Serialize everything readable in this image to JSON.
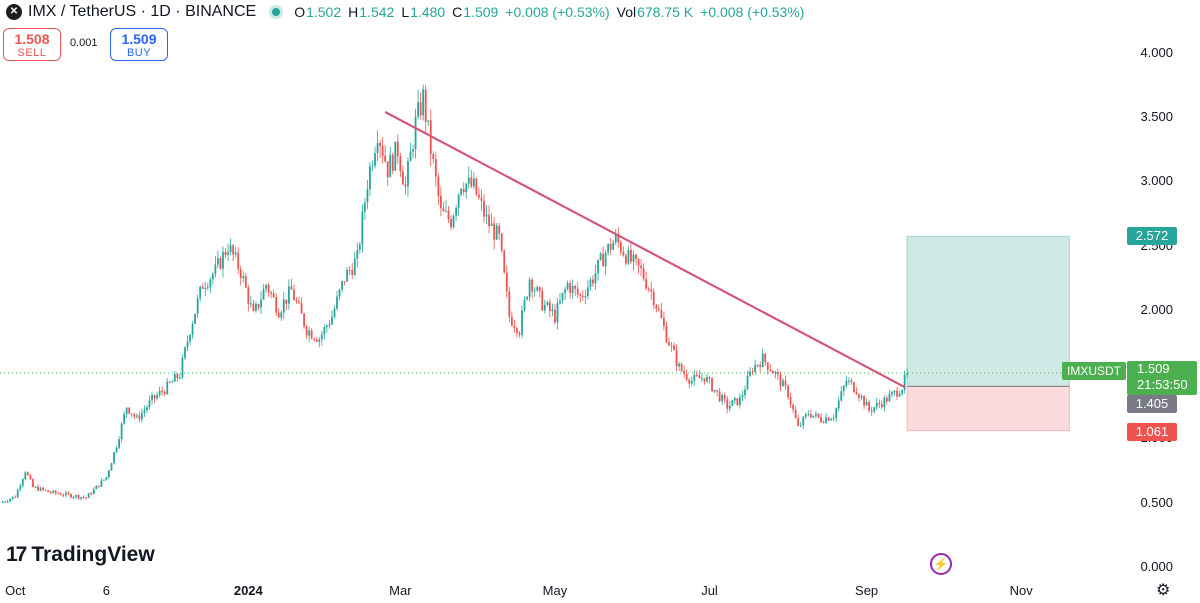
{
  "header": {
    "symbol_icon_glyph": "✕",
    "title": "IMX / TetherUS · 1D · BINANCE",
    "ohlc": [
      {
        "label": "O",
        "value": "1.502"
      },
      {
        "label": "H",
        "value": "1.542"
      },
      {
        "label": "L",
        "value": "1.480"
      },
      {
        "label": "C",
        "value": "1.509"
      }
    ],
    "change": "+0.008 (+0.53%)",
    "vol_label": "Vol",
    "volume": "678.75 K",
    "vol_change": "+0.008 (+0.53%)"
  },
  "trade": {
    "sell_price": "1.508",
    "sell_label": "SELL",
    "spread": "0.001",
    "buy_price": "1.509",
    "buy_label": "BUY"
  },
  "colors": {
    "up": "#26a69a",
    "down": "#ef5350",
    "trendline": "#d6537a",
    "target_zone": "#cfe9e5",
    "stop_zone": "#fadadd",
    "entry": "#787b86"
  },
  "chart_data": {
    "type": "candlestick",
    "title": "IMX / TetherUS · 1D · BINANCE",
    "xlabel": "",
    "ylabel": "",
    "ylim": [
      0.0,
      4.1
    ],
    "x_range": [
      "2023-09-25",
      "2024-12-10"
    ],
    "y_ticks": [
      "4.000",
      "3.500",
      "3.000",
      "2.500",
      "2.000",
      "1.500",
      "1.000",
      "0.500",
      "0.000"
    ],
    "x_ticks": [
      {
        "label": "Oct",
        "date": "2023-10-01",
        "bold": false
      },
      {
        "label": "6",
        "date": "2023-11-06",
        "bold": false
      },
      {
        "label": "2024",
        "date": "2024-01-01",
        "bold": true
      },
      {
        "label": "Mar",
        "date": "2024-03-01",
        "bold": false
      },
      {
        "label": "May",
        "date": "2024-05-01",
        "bold": false
      },
      {
        "label": "Jul",
        "date": "2024-07-01",
        "bold": false
      },
      {
        "label": "Sep",
        "date": "2024-09-01",
        "bold": false
      },
      {
        "label": "Nov",
        "date": "2024-11-01",
        "bold": false
      }
    ],
    "price_path": [
      [
        "2023-09-25",
        0.5
      ],
      [
        "2023-10-01",
        0.55
      ],
      [
        "2023-10-05",
        0.75
      ],
      [
        "2023-10-08",
        0.62
      ],
      [
        "2023-10-15",
        0.58
      ],
      [
        "2023-10-22",
        0.56
      ],
      [
        "2023-10-29",
        0.54
      ],
      [
        "2023-11-02",
        0.62
      ],
      [
        "2023-11-06",
        0.7
      ],
      [
        "2023-11-10",
        0.95
      ],
      [
        "2023-11-14",
        1.25
      ],
      [
        "2023-11-18",
        1.15
      ],
      [
        "2023-11-24",
        1.3
      ],
      [
        "2023-11-30",
        1.4
      ],
      [
        "2023-12-05",
        1.5
      ],
      [
        "2023-12-09",
        1.85
      ],
      [
        "2023-12-14",
        2.2
      ],
      [
        "2023-12-19",
        2.3
      ],
      [
        "2023-12-24",
        2.5
      ],
      [
        "2023-12-29",
        2.3
      ],
      [
        "2024-01-03",
        1.95
      ],
      [
        "2024-01-08",
        2.2
      ],
      [
        "2024-01-13",
        2.0
      ],
      [
        "2024-01-18",
        2.15
      ],
      [
        "2024-01-24",
        1.85
      ],
      [
        "2024-01-29",
        1.78
      ],
      [
        "2024-02-03",
        1.95
      ],
      [
        "2024-02-08",
        2.25
      ],
      [
        "2024-02-13",
        2.4
      ],
      [
        "2024-02-17",
        3.0
      ],
      [
        "2024-02-21",
        3.4
      ],
      [
        "2024-02-25",
        3.1
      ],
      [
        "2024-02-29",
        3.25
      ],
      [
        "2024-03-03",
        2.95
      ],
      [
        "2024-03-07",
        3.45
      ],
      [
        "2024-03-10",
        3.65
      ],
      [
        "2024-03-13",
        3.25
      ],
      [
        "2024-03-17",
        2.75
      ],
      [
        "2024-03-21",
        2.7
      ],
      [
        "2024-03-25",
        3.0
      ],
      [
        "2024-03-30",
        2.95
      ],
      [
        "2024-04-04",
        2.7
      ],
      [
        "2024-04-09",
        2.55
      ],
      [
        "2024-04-13",
        1.95
      ],
      [
        "2024-04-17",
        1.85
      ],
      [
        "2024-04-21",
        2.25
      ],
      [
        "2024-04-26",
        2.05
      ],
      [
        "2024-05-01",
        1.95
      ],
      [
        "2024-05-06",
        2.2
      ],
      [
        "2024-05-11",
        2.1
      ],
      [
        "2024-05-16",
        2.25
      ],
      [
        "2024-05-21",
        2.45
      ],
      [
        "2024-05-25",
        2.55
      ],
      [
        "2024-05-30",
        2.4
      ],
      [
        "2024-06-04",
        2.3
      ],
      [
        "2024-06-09",
        2.1
      ],
      [
        "2024-06-14",
        1.8
      ],
      [
        "2024-06-19",
        1.55
      ],
      [
        "2024-06-24",
        1.45
      ],
      [
        "2024-06-29",
        1.48
      ],
      [
        "2024-07-04",
        1.35
      ],
      [
        "2024-07-08",
        1.25
      ],
      [
        "2024-07-13",
        1.3
      ],
      [
        "2024-07-18",
        1.55
      ],
      [
        "2024-07-22",
        1.62
      ],
      [
        "2024-07-27",
        1.5
      ],
      [
        "2024-08-01",
        1.35
      ],
      [
        "2024-08-05",
        1.08
      ],
      [
        "2024-08-09",
        1.2
      ],
      [
        "2024-08-14",
        1.15
      ],
      [
        "2024-08-19",
        1.18
      ],
      [
        "2024-08-24",
        1.45
      ],
      [
        "2024-08-28",
        1.38
      ],
      [
        "2024-09-02",
        1.22
      ],
      [
        "2024-09-07",
        1.28
      ],
      [
        "2024-09-12",
        1.35
      ],
      [
        "2024-09-15",
        1.4
      ],
      [
        "2024-09-17",
        1.509
      ]
    ],
    "trendline": {
      "start": [
        "2024-02-24",
        3.54
      ],
      "end": [
        "2024-09-16",
        1.4
      ]
    },
    "position": {
      "start_date": "2024-09-17",
      "end_date": "2024-11-20",
      "target": 2.572,
      "entry": 1.405,
      "stop": 1.061
    },
    "last_price": 1.509,
    "symbol": "IMXUSDT",
    "countdown": "21:53:50",
    "price_labels": {
      "target": "2.572",
      "entry": "1.405",
      "stop": "1.061",
      "last": "1.509"
    }
  },
  "footer": {
    "brand_mark": "17",
    "brand": "TradingView",
    "bolt_glyph": "⚡",
    "settings_glyph": "⚙"
  }
}
